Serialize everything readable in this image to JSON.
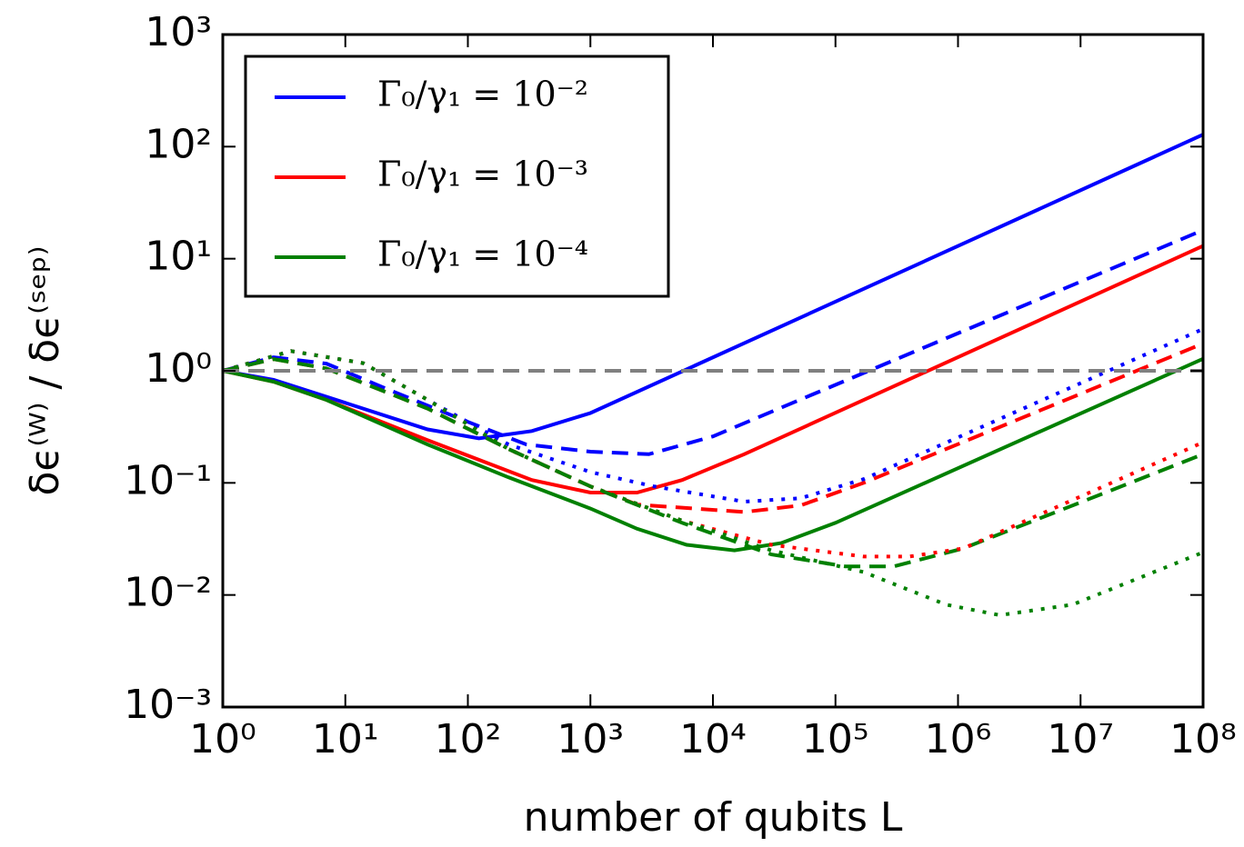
{
  "chart_data": {
    "type": "line",
    "xlabel": "number of qubits L",
    "ylabel": "δϵ⁽ᵂ⁾ / δϵ⁽ˢᵉᵖ⁾",
    "xscale": "log",
    "yscale": "log",
    "legend": "upper left",
    "xlim": [
      1,
      100000000
    ],
    "ylim": [
      0.001,
      1000
    ],
    "xticks": [
      {
        "value": 1,
        "label": "10⁰"
      },
      {
        "value": 10,
        "label": "10¹"
      },
      {
        "value": 100,
        "label": "10²"
      },
      {
        "value": 1000,
        "label": "10³"
      },
      {
        "value": 10000,
        "label": "10⁴"
      },
      {
        "value": 100000,
        "label": "10⁵"
      },
      {
        "value": 1000000,
        "label": "10⁶"
      },
      {
        "value": 10000000,
        "label": "10⁷"
      },
      {
        "value": 100000000,
        "label": "10⁸"
      }
    ],
    "yticks": [
      {
        "value": 0.001,
        "label": "10⁻³"
      },
      {
        "value": 0.01,
        "label": "10⁻²"
      },
      {
        "value": 0.1,
        "label": "10⁻¹"
      },
      {
        "value": 1,
        "label": "10⁰"
      },
      {
        "value": 10,
        "label": "10¹"
      },
      {
        "value": 100,
        "label": "10²"
      },
      {
        "value": 1000,
        "label": "10³"
      }
    ],
    "series": [
      {
        "name": "Γ₀/γ₁ = 10⁻²",
        "color": "#0000ff",
        "dash": "solid",
        "x": [
          1,
          2.6,
          6.6,
          47,
          123,
          333,
          1000,
          100000000
        ],
        "values": [
          1,
          0.83,
          0.6,
          0.3,
          0.25,
          0.29,
          0.42,
          128
        ]
      },
      {
        "name": "Γ₀/γ₁ = 10⁻³",
        "color": "#ff0000",
        "dash": "solid",
        "x": [
          1,
          2.6,
          7,
          47,
          333,
          1000,
          2400,
          5600,
          18000,
          100000000
        ],
        "values": [
          1,
          0.8,
          0.55,
          0.24,
          0.106,
          0.082,
          0.082,
          0.106,
          0.18,
          13
        ]
      },
      {
        "name": "Γ₀/γ₁ = 10⁻⁴",
        "color": "#008000",
        "dash": "solid",
        "x": [
          1,
          2.6,
          7,
          47,
          215,
          1000,
          2400,
          6100,
          15000,
          36000,
          100000,
          100000000
        ],
        "values": [
          1,
          0.8,
          0.55,
          0.22,
          0.112,
          0.059,
          0.039,
          0.028,
          0.025,
          0.029,
          0.044,
          1.28
        ]
      },
      {
        "color": "#0000ff",
        "dash": "dashed",
        "x": [
          1,
          2.6,
          7,
          24,
          100,
          300,
          1000,
          3000,
          10000,
          100000000
        ],
        "values": [
          1,
          1.32,
          1.16,
          0.66,
          0.35,
          0.22,
          0.19,
          0.18,
          0.26,
          18
        ]
      },
      {
        "color": "#ff0000",
        "dash": "dashed",
        "x": [
          1,
          2.6,
          7,
          47,
          215,
          1000,
          2400,
          18000,
          52000,
          170000,
          100000000
        ],
        "values": [
          1,
          1.27,
          1.05,
          0.46,
          0.2,
          0.093,
          0.064,
          0.055,
          0.063,
          0.1,
          1.75
        ]
      },
      {
        "color": "#008000",
        "dash": "dashed",
        "x": [
          1,
          2.6,
          7,
          47,
          215,
          1000,
          5600,
          30000,
          120000,
          300000,
          1100000,
          100000000
        ],
        "values": [
          1,
          1.27,
          1.05,
          0.46,
          0.2,
          0.093,
          0.044,
          0.023,
          0.018,
          0.018,
          0.026,
          0.18
        ]
      },
      {
        "color": "#0000ff",
        "dash": "dotted",
        "x": [
          1,
          3.6,
          14,
          47,
          215,
          1000,
          3300,
          18000,
          52000,
          170000,
          100000000
        ],
        "values": [
          1,
          1.5,
          1.17,
          0.55,
          0.22,
          0.125,
          0.093,
          0.068,
          0.073,
          0.108,
          2.36
        ]
      },
      {
        "color": "#ff0000",
        "dash": "dotted",
        "x": [
          1,
          3.6,
          14,
          47,
          215,
          1000,
          5600,
          30000,
          170000,
          400000,
          1100000,
          100000000
        ],
        "values": [
          1,
          1.5,
          1.17,
          0.55,
          0.2,
          0.093,
          0.046,
          0.028,
          0.022,
          0.022,
          0.026,
          0.23
        ]
      },
      {
        "color": "#008000",
        "dash": "dotted",
        "x": [
          1,
          3.6,
          14,
          47,
          215,
          1000,
          5600,
          30000,
          170000,
          800000,
          2200000,
          8600000,
          100000000
        ],
        "values": [
          1,
          1.5,
          1.17,
          0.55,
          0.2,
          0.093,
          0.046,
          0.025,
          0.016,
          0.0082,
          0.0066,
          0.0082,
          0.024
        ]
      },
      {
        "color": "#808080",
        "dash": "dashed",
        "x": [
          1,
          100000000
        ],
        "values": [
          1,
          1
        ]
      }
    ]
  }
}
